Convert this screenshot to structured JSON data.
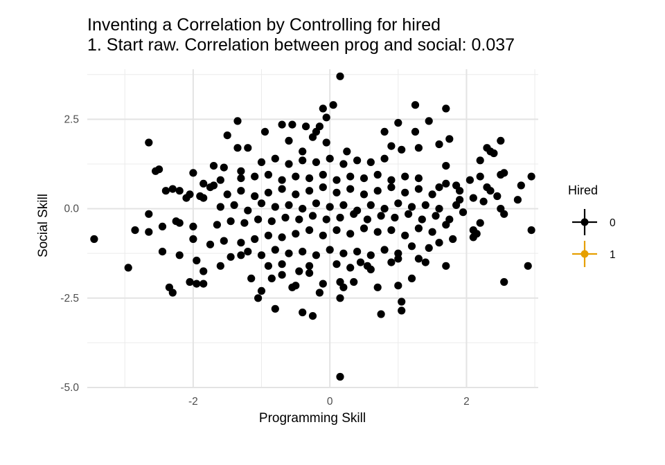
{
  "title": "Inventing a Correlation by Controlling for hired",
  "subtitle": "1. Start raw. Correlation between prog and social: 0.037",
  "legend": {
    "title": "Hired",
    "items": [
      {
        "label": "0",
        "color": "#000000"
      },
      {
        "label": "1",
        "color": "#E69F00"
      }
    ]
  },
  "chart_data": {
    "type": "scatter",
    "title": "Inventing a Correlation by Controlling for hired",
    "subtitle": "1. Start raw. Correlation between prog and social: 0.037",
    "xlabel": "Programming Skill",
    "ylabel": "Social Skill",
    "xlim": [
      -3.55,
      3.05
    ],
    "ylim": [
      -5.0,
      3.9
    ],
    "x_ticks": [
      -2,
      0,
      2
    ],
    "x_tick_labels": [
      "-2",
      "0",
      "2"
    ],
    "y_ticks": [
      -5.0,
      -2.5,
      0.0,
      2.5
    ],
    "y_tick_labels": [
      "-5.0",
      "-2.5",
      "0.0",
      "2.5"
    ],
    "grid": true,
    "legend_position": "right",
    "series": [
      {
        "name": "0",
        "color": "#000000",
        "points": [
          [
            0.15,
            3.7
          ],
          [
            0.05,
            2.9
          ],
          [
            -0.1,
            2.8
          ],
          [
            1.7,
            2.8
          ],
          [
            1.25,
            2.9
          ],
          [
            -0.05,
            2.55
          ],
          [
            -1.35,
            2.45
          ],
          [
            -0.7,
            2.35
          ],
          [
            -0.55,
            2.35
          ],
          [
            -0.35,
            2.3
          ],
          [
            1.0,
            2.4
          ],
          [
            1.45,
            2.45
          ],
          [
            -0.15,
            2.3
          ],
          [
            -1.5,
            2.05
          ],
          [
            -0.95,
            2.15
          ],
          [
            -0.2,
            2.15
          ],
          [
            -0.25,
            2.0
          ],
          [
            0.8,
            2.15
          ],
          [
            1.25,
            2.15
          ],
          [
            1.75,
            1.95
          ],
          [
            2.5,
            1.9
          ],
          [
            -2.65,
            1.85
          ],
          [
            -0.05,
            1.85
          ],
          [
            -0.6,
            1.9
          ],
          [
            1.6,
            1.8
          ],
          [
            2.35,
            1.6
          ],
          [
            2.4,
            1.55
          ],
          [
            2.3,
            1.7
          ],
          [
            -1.2,
            1.7
          ],
          [
            -1.35,
            1.7
          ],
          [
            0.9,
            1.75
          ],
          [
            1.05,
            1.65
          ],
          [
            1.3,
            1.7
          ],
          [
            0.25,
            1.6
          ],
          [
            -0.4,
            1.6
          ],
          [
            2.2,
            1.35
          ],
          [
            -2.5,
            1.1
          ],
          [
            -2.55,
            1.05
          ],
          [
            -2.0,
            1.0
          ],
          [
            -1.7,
            1.2
          ],
          [
            -1.55,
            1.15
          ],
          [
            -1.3,
            1.05
          ],
          [
            1.7,
            1.2
          ],
          [
            2.05,
            0.8
          ],
          [
            2.55,
            1.0
          ],
          [
            2.5,
            0.95
          ],
          [
            2.95,
            0.9
          ],
          [
            2.2,
            0.9
          ],
          [
            2.8,
            0.65
          ],
          [
            2.3,
            0.6
          ],
          [
            2.35,
            0.5
          ],
          [
            -2.3,
            0.55
          ],
          [
            -2.2,
            0.5
          ],
          [
            -2.4,
            0.5
          ],
          [
            -2.1,
            0.3
          ],
          [
            -2.05,
            0.4
          ],
          [
            -1.9,
            0.35
          ],
          [
            -1.85,
            0.3
          ],
          [
            2.45,
            0.35
          ],
          [
            2.75,
            0.25
          ],
          [
            2.1,
            0.3
          ],
          [
            2.25,
            0.2
          ],
          [
            1.9,
            0.25
          ],
          [
            1.85,
            0.1
          ],
          [
            2.5,
            0.0
          ],
          [
            -2.65,
            -0.15
          ],
          [
            -2.45,
            -0.5
          ],
          [
            -2.65,
            -0.65
          ],
          [
            -2.85,
            -0.6
          ],
          [
            -2.2,
            -0.4
          ],
          [
            -2.25,
            -0.35
          ],
          [
            -2.0,
            -0.5
          ],
          [
            2.2,
            -0.4
          ],
          [
            2.55,
            -0.15
          ],
          [
            2.95,
            -0.6
          ],
          [
            2.1,
            -0.6
          ],
          [
            2.15,
            -0.7
          ],
          [
            2.1,
            -0.8
          ],
          [
            -3.45,
            -0.85
          ],
          [
            -2.0,
            -0.85
          ],
          [
            -2.45,
            -1.2
          ],
          [
            -2.2,
            -1.3
          ],
          [
            -2.95,
            -1.65
          ],
          [
            -1.95,
            -1.45
          ],
          [
            -1.85,
            -1.75
          ],
          [
            -2.05,
            -2.05
          ],
          [
            -2.35,
            -2.2
          ],
          [
            -2.3,
            -2.35
          ],
          [
            -1.85,
            -2.1
          ],
          [
            -1.95,
            -2.1
          ],
          [
            2.9,
            -1.6
          ],
          [
            2.55,
            -2.05
          ],
          [
            1.7,
            -1.6
          ],
          [
            1.4,
            -1.5
          ],
          [
            1.3,
            -1.4
          ],
          [
            1.2,
            -1.95
          ],
          [
            1.0,
            -2.15
          ],
          [
            0.7,
            -2.2
          ],
          [
            1.05,
            -2.6
          ],
          [
            1.05,
            -2.85
          ],
          [
            0.75,
            -2.95
          ],
          [
            -0.8,
            -2.8
          ],
          [
            -0.4,
            -2.9
          ],
          [
            -0.25,
            -3.0
          ],
          [
            0.15,
            -4.7
          ],
          [
            -1.05,
            -2.5
          ],
          [
            -1.0,
            -2.3
          ],
          [
            -0.5,
            -2.15
          ],
          [
            -0.55,
            -2.2
          ],
          [
            -0.15,
            -2.35
          ],
          [
            0.15,
            -2.5
          ],
          [
            0.2,
            -2.2
          ],
          [
            0.35,
            -2.05
          ],
          [
            0.15,
            -2.05
          ],
          [
            -0.1,
            -2.1
          ],
          [
            -1.15,
            -1.95
          ],
          [
            -0.85,
            -1.95
          ],
          [
            -0.7,
            -1.85
          ],
          [
            -0.45,
            -1.75
          ],
          [
            -0.3,
            -1.8
          ],
          [
            0.6,
            -1.7
          ],
          [
            0.55,
            -1.6
          ],
          [
            0.9,
            -1.5
          ],
          [
            1.0,
            -1.4
          ],
          [
            -1.6,
            -1.6
          ],
          [
            -1.45,
            -1.35
          ],
          [
            -1.3,
            -1.3
          ],
          [
            -1.75,
            -1.0
          ],
          [
            -1.55,
            -0.9
          ],
          [
            -1.3,
            -0.95
          ],
          [
            -1.1,
            -0.85
          ],
          [
            -0.9,
            -0.75
          ],
          [
            -0.7,
            -0.8
          ],
          [
            -0.5,
            -0.7
          ],
          [
            -0.3,
            -0.6
          ],
          [
            -0.1,
            -0.75
          ],
          [
            0.1,
            -0.6
          ],
          [
            0.3,
            -0.7
          ],
          [
            0.5,
            -0.55
          ],
          [
            0.7,
            -0.65
          ],
          [
            0.9,
            -0.6
          ],
          [
            1.1,
            -0.75
          ],
          [
            1.3,
            -0.55
          ],
          [
            1.5,
            -0.65
          ],
          [
            1.7,
            -0.45
          ],
          [
            -1.65,
            -0.45
          ],
          [
            -1.45,
            -0.35
          ],
          [
            -1.25,
            -0.4
          ],
          [
            -1.05,
            -0.3
          ],
          [
            -0.85,
            -0.35
          ],
          [
            -0.65,
            -0.25
          ],
          [
            -0.45,
            -0.3
          ],
          [
            -0.25,
            -0.2
          ],
          [
            -0.05,
            -0.3
          ],
          [
            0.15,
            -0.25
          ],
          [
            0.35,
            -0.15
          ],
          [
            0.55,
            -0.3
          ],
          [
            0.75,
            -0.2
          ],
          [
            0.95,
            -0.25
          ],
          [
            1.15,
            -0.15
          ],
          [
            1.35,
            -0.3
          ],
          [
            1.55,
            -0.2
          ],
          [
            1.75,
            -0.3
          ],
          [
            1.95,
            -0.1
          ],
          [
            -1.6,
            0.05
          ],
          [
            -1.4,
            0.1
          ],
          [
            -1.2,
            -0.05
          ],
          [
            -1.0,
            0.15
          ],
          [
            -0.8,
            0.05
          ],
          [
            -0.6,
            0.1
          ],
          [
            -0.4,
            0.0
          ],
          [
            -0.2,
            0.15
          ],
          [
            0.0,
            0.05
          ],
          [
            0.2,
            0.1
          ],
          [
            0.4,
            -0.05
          ],
          [
            0.6,
            0.1
          ],
          [
            0.8,
            0.0
          ],
          [
            1.0,
            0.15
          ],
          [
            1.2,
            0.05
          ],
          [
            1.4,
            0.1
          ],
          [
            1.6,
            0.0
          ],
          [
            -1.5,
            0.4
          ],
          [
            -1.3,
            0.5
          ],
          [
            -1.1,
            0.35
          ],
          [
            -0.9,
            0.45
          ],
          [
            -0.7,
            0.55
          ],
          [
            -0.5,
            0.4
          ],
          [
            -0.3,
            0.5
          ],
          [
            -0.1,
            0.6
          ],
          [
            0.1,
            0.45
          ],
          [
            0.3,
            0.55
          ],
          [
            0.5,
            0.4
          ],
          [
            0.7,
            0.5
          ],
          [
            0.9,
            0.6
          ],
          [
            1.1,
            0.45
          ],
          [
            1.3,
            0.55
          ],
          [
            1.5,
            0.4
          ],
          [
            -1.3,
            0.85
          ],
          [
            -1.1,
            0.9
          ],
          [
            -0.9,
            0.95
          ],
          [
            -0.7,
            0.8
          ],
          [
            -0.5,
            0.9
          ],
          [
            -0.3,
            0.85
          ],
          [
            -0.1,
            0.95
          ],
          [
            0.1,
            0.8
          ],
          [
            0.3,
            0.9
          ],
          [
            0.5,
            0.85
          ],
          [
            0.7,
            0.95
          ],
          [
            0.9,
            0.8
          ],
          [
            1.1,
            0.9
          ],
          [
            1.3,
            0.85
          ],
          [
            -1.0,
            1.3
          ],
          [
            -0.8,
            1.4
          ],
          [
            -0.6,
            1.25
          ],
          [
            -0.4,
            1.35
          ],
          [
            -0.2,
            1.3
          ],
          [
            0.0,
            1.4
          ],
          [
            0.2,
            1.25
          ],
          [
            0.4,
            1.35
          ],
          [
            0.6,
            1.3
          ],
          [
            0.8,
            1.4
          ],
          [
            -1.2,
            -1.2
          ],
          [
            -1.0,
            -1.3
          ],
          [
            -0.8,
            -1.15
          ],
          [
            -0.6,
            -1.25
          ],
          [
            -0.4,
            -1.2
          ],
          [
            -0.2,
            -1.3
          ],
          [
            0.0,
            -1.15
          ],
          [
            0.2,
            -1.25
          ],
          [
            0.4,
            -1.2
          ],
          [
            0.6,
            -1.3
          ],
          [
            0.8,
            -1.15
          ],
          [
            1.0,
            -1.25
          ],
          [
            -0.9,
            -1.6
          ],
          [
            -0.7,
            -1.55
          ],
          [
            -0.3,
            -1.6
          ],
          [
            0.1,
            -1.55
          ],
          [
            0.3,
            -1.65
          ],
          [
            0.45,
            -1.5
          ],
          [
            1.2,
            -1.05
          ],
          [
            1.45,
            -1.1
          ],
          [
            1.6,
            -0.95
          ],
          [
            1.8,
            -0.85
          ],
          [
            -1.85,
            0.7
          ],
          [
            -1.7,
            0.65
          ],
          [
            -1.75,
            0.6
          ],
          [
            -1.6,
            0.8
          ],
          [
            1.85,
            0.65
          ],
          [
            1.7,
            0.7
          ],
          [
            1.9,
            0.5
          ],
          [
            1.6,
            0.6
          ]
        ]
      },
      {
        "name": "1",
        "color": "#E69F00",
        "points": []
      }
    ]
  }
}
